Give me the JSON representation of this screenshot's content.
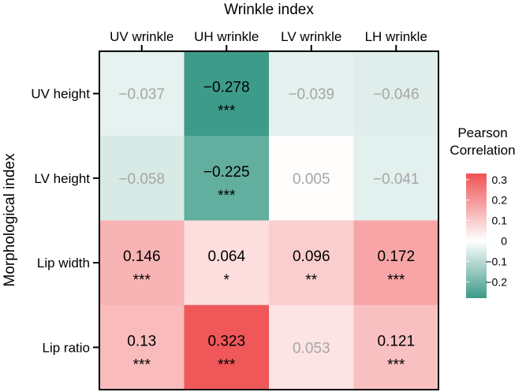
{
  "chart_data": {
    "type": "heatmap",
    "xlabel": "Wrinkle index",
    "ylabel": "Morphological index",
    "x_categories": [
      "UV wrinkle",
      "UH wrinkle",
      "LV wrinkle",
      "LH wrinkle"
    ],
    "y_categories": [
      "UV height",
      "LV height",
      "Lip width",
      "Lip ratio"
    ],
    "values": [
      [
        -0.037,
        -0.278,
        -0.039,
        -0.046
      ],
      [
        -0.058,
        -0.225,
        0.005,
        -0.041
      ],
      [
        0.146,
        0.064,
        0.096,
        0.172
      ],
      [
        0.13,
        0.323,
        0.053,
        0.121
      ]
    ],
    "value_labels": [
      [
        "−0.037",
        "−0.278",
        "−0.039",
        "−0.046"
      ],
      [
        "−0.058",
        "−0.225",
        "0.005",
        "−0.041"
      ],
      [
        "0.146",
        "0.064",
        "0.096",
        "0.172"
      ],
      [
        "0.13",
        "0.323",
        "0.053",
        "0.121"
      ]
    ],
    "significance": [
      [
        "",
        "***",
        "",
        ""
      ],
      [
        "",
        "***",
        "",
        ""
      ],
      [
        "***",
        "*",
        "**",
        "***"
      ],
      [
        "***",
        "***",
        "",
        "***"
      ]
    ],
    "colorbar": {
      "title_lines": [
        "Pearson",
        "Correlation"
      ],
      "range": [
        -0.28,
        0.33
      ],
      "ticks": [
        0.3,
        0.2,
        0.1,
        0,
        -0.1,
        -0.2
      ],
      "tick_labels": [
        "0.3",
        "0.2",
        "0.1",
        "0",
        "−0.1",
        "−0.2"
      ],
      "colors": {
        "negative": "#3c9a88",
        "neutral": "#ffffff",
        "positive": "#ef5355"
      }
    },
    "text_colors": {
      "significant": "#000000",
      "nonsignificant": "#a6a6a6"
    }
  }
}
